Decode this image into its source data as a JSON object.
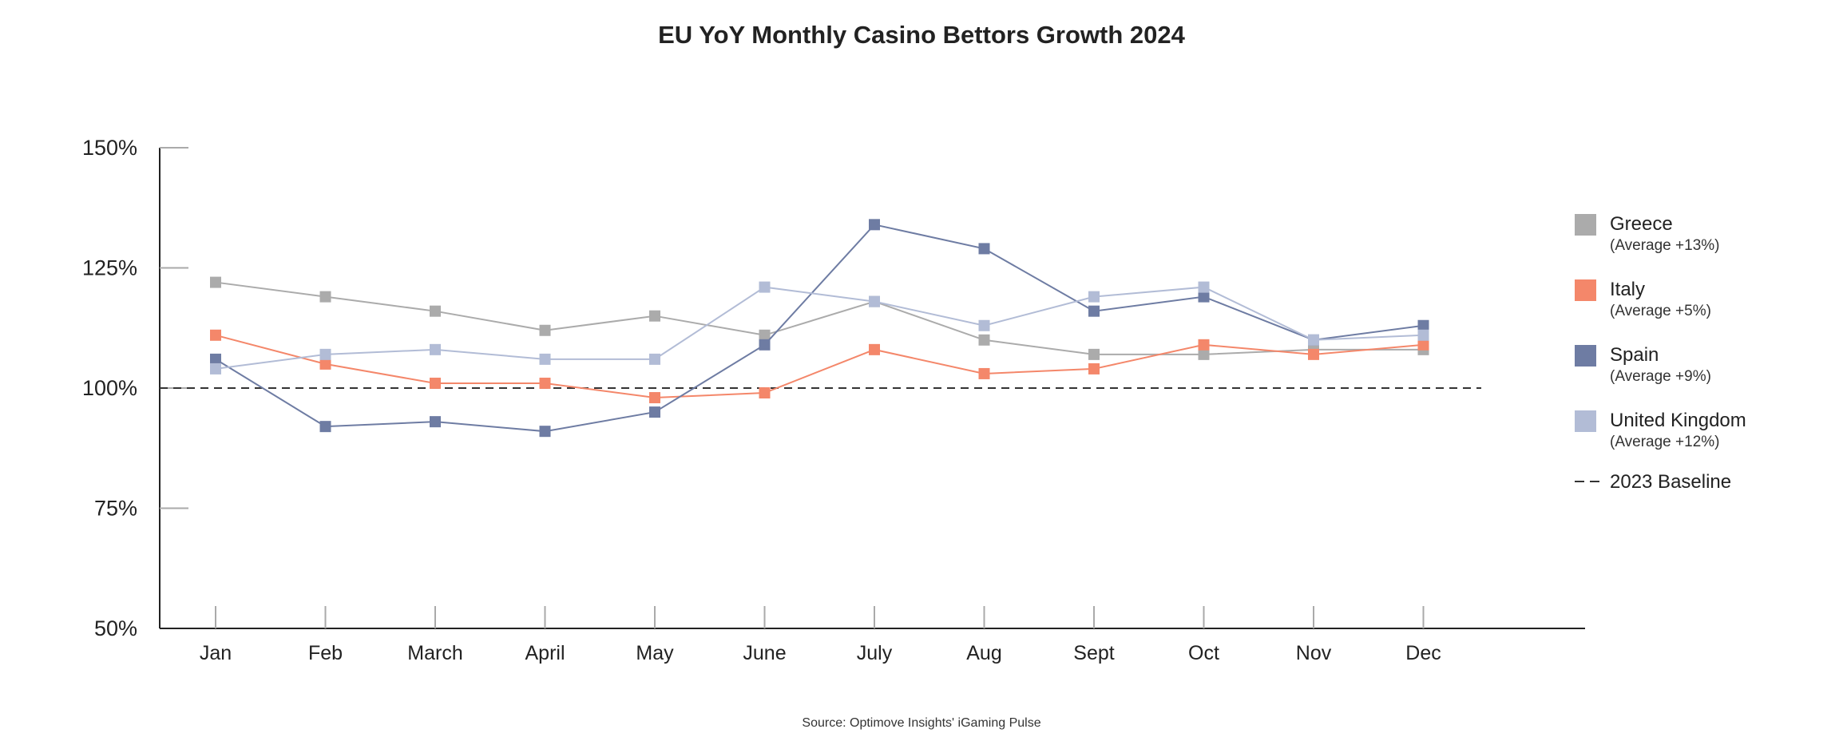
{
  "chart_data": {
    "type": "line",
    "title": "EU YoY Monthly Casino Bettors Growth 2024",
    "xlabel": "",
    "ylabel": "",
    "categories": [
      "Jan",
      "Feb",
      "March",
      "April",
      "May",
      "June",
      "July",
      "Aug",
      "Sept",
      "Oct",
      "Nov",
      "Dec"
    ],
    "ylim": [
      50,
      150
    ],
    "y_ticks": [
      50,
      75,
      100,
      125,
      150
    ],
    "y_tick_labels": [
      "50%",
      "75%",
      "100%",
      "125%",
      "150%"
    ],
    "grid": false,
    "legend_position": "right",
    "baseline": {
      "value": 100,
      "label": "2023 Baseline",
      "style": "dashed",
      "color": "#333333"
    },
    "series": [
      {
        "name": "Greece",
        "note": "(Average +13%)",
        "color": "#ababab",
        "values": [
          122,
          119,
          116,
          112,
          115,
          111,
          118,
          110,
          107,
          107,
          108,
          108
        ]
      },
      {
        "name": "Italy",
        "note": "(Average +5%)",
        "color": "#f4876a",
        "values": [
          111,
          105,
          101,
          101,
          98,
          99,
          108,
          103,
          104,
          109,
          107,
          109
        ]
      },
      {
        "name": "Spain",
        "note": "(Average +9%)",
        "color": "#6e7ca3",
        "values": [
          106,
          92,
          93,
          91,
          95,
          109,
          134,
          129,
          116,
          119,
          110,
          113
        ]
      },
      {
        "name": "United Kingdom",
        "note": "(Average +12%)",
        "color": "#b2bcd6",
        "values": [
          104,
          107,
          108,
          106,
          106,
          121,
          118,
          113,
          119,
          121,
          110,
          111
        ]
      }
    ],
    "source": "Source: Optimove Insights' iGaming Pulse"
  }
}
